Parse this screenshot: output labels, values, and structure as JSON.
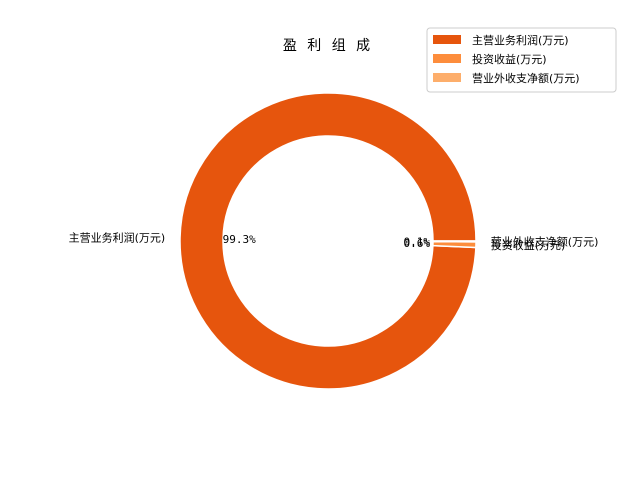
{
  "chart_data": {
    "type": "pie",
    "title": "盈 利 组 成",
    "donut": true,
    "categories": [
      "主营业务利润(万元)",
      "投资收益(万元)",
      "营业外收支净额(万元)"
    ],
    "values": [
      99.3,
      0.6,
      0.1
    ],
    "percent_labels": [
      "99.3%",
      "0.6%",
      "0.1%"
    ],
    "colors": [
      "#e6550d",
      "#fd8d3c",
      "#fdae6b"
    ],
    "legend": {
      "position": "top-right",
      "entries": [
        "主营业务利润(万元)",
        "投资收益(万元)",
        "营业外收支净额(万元)"
      ]
    }
  }
}
